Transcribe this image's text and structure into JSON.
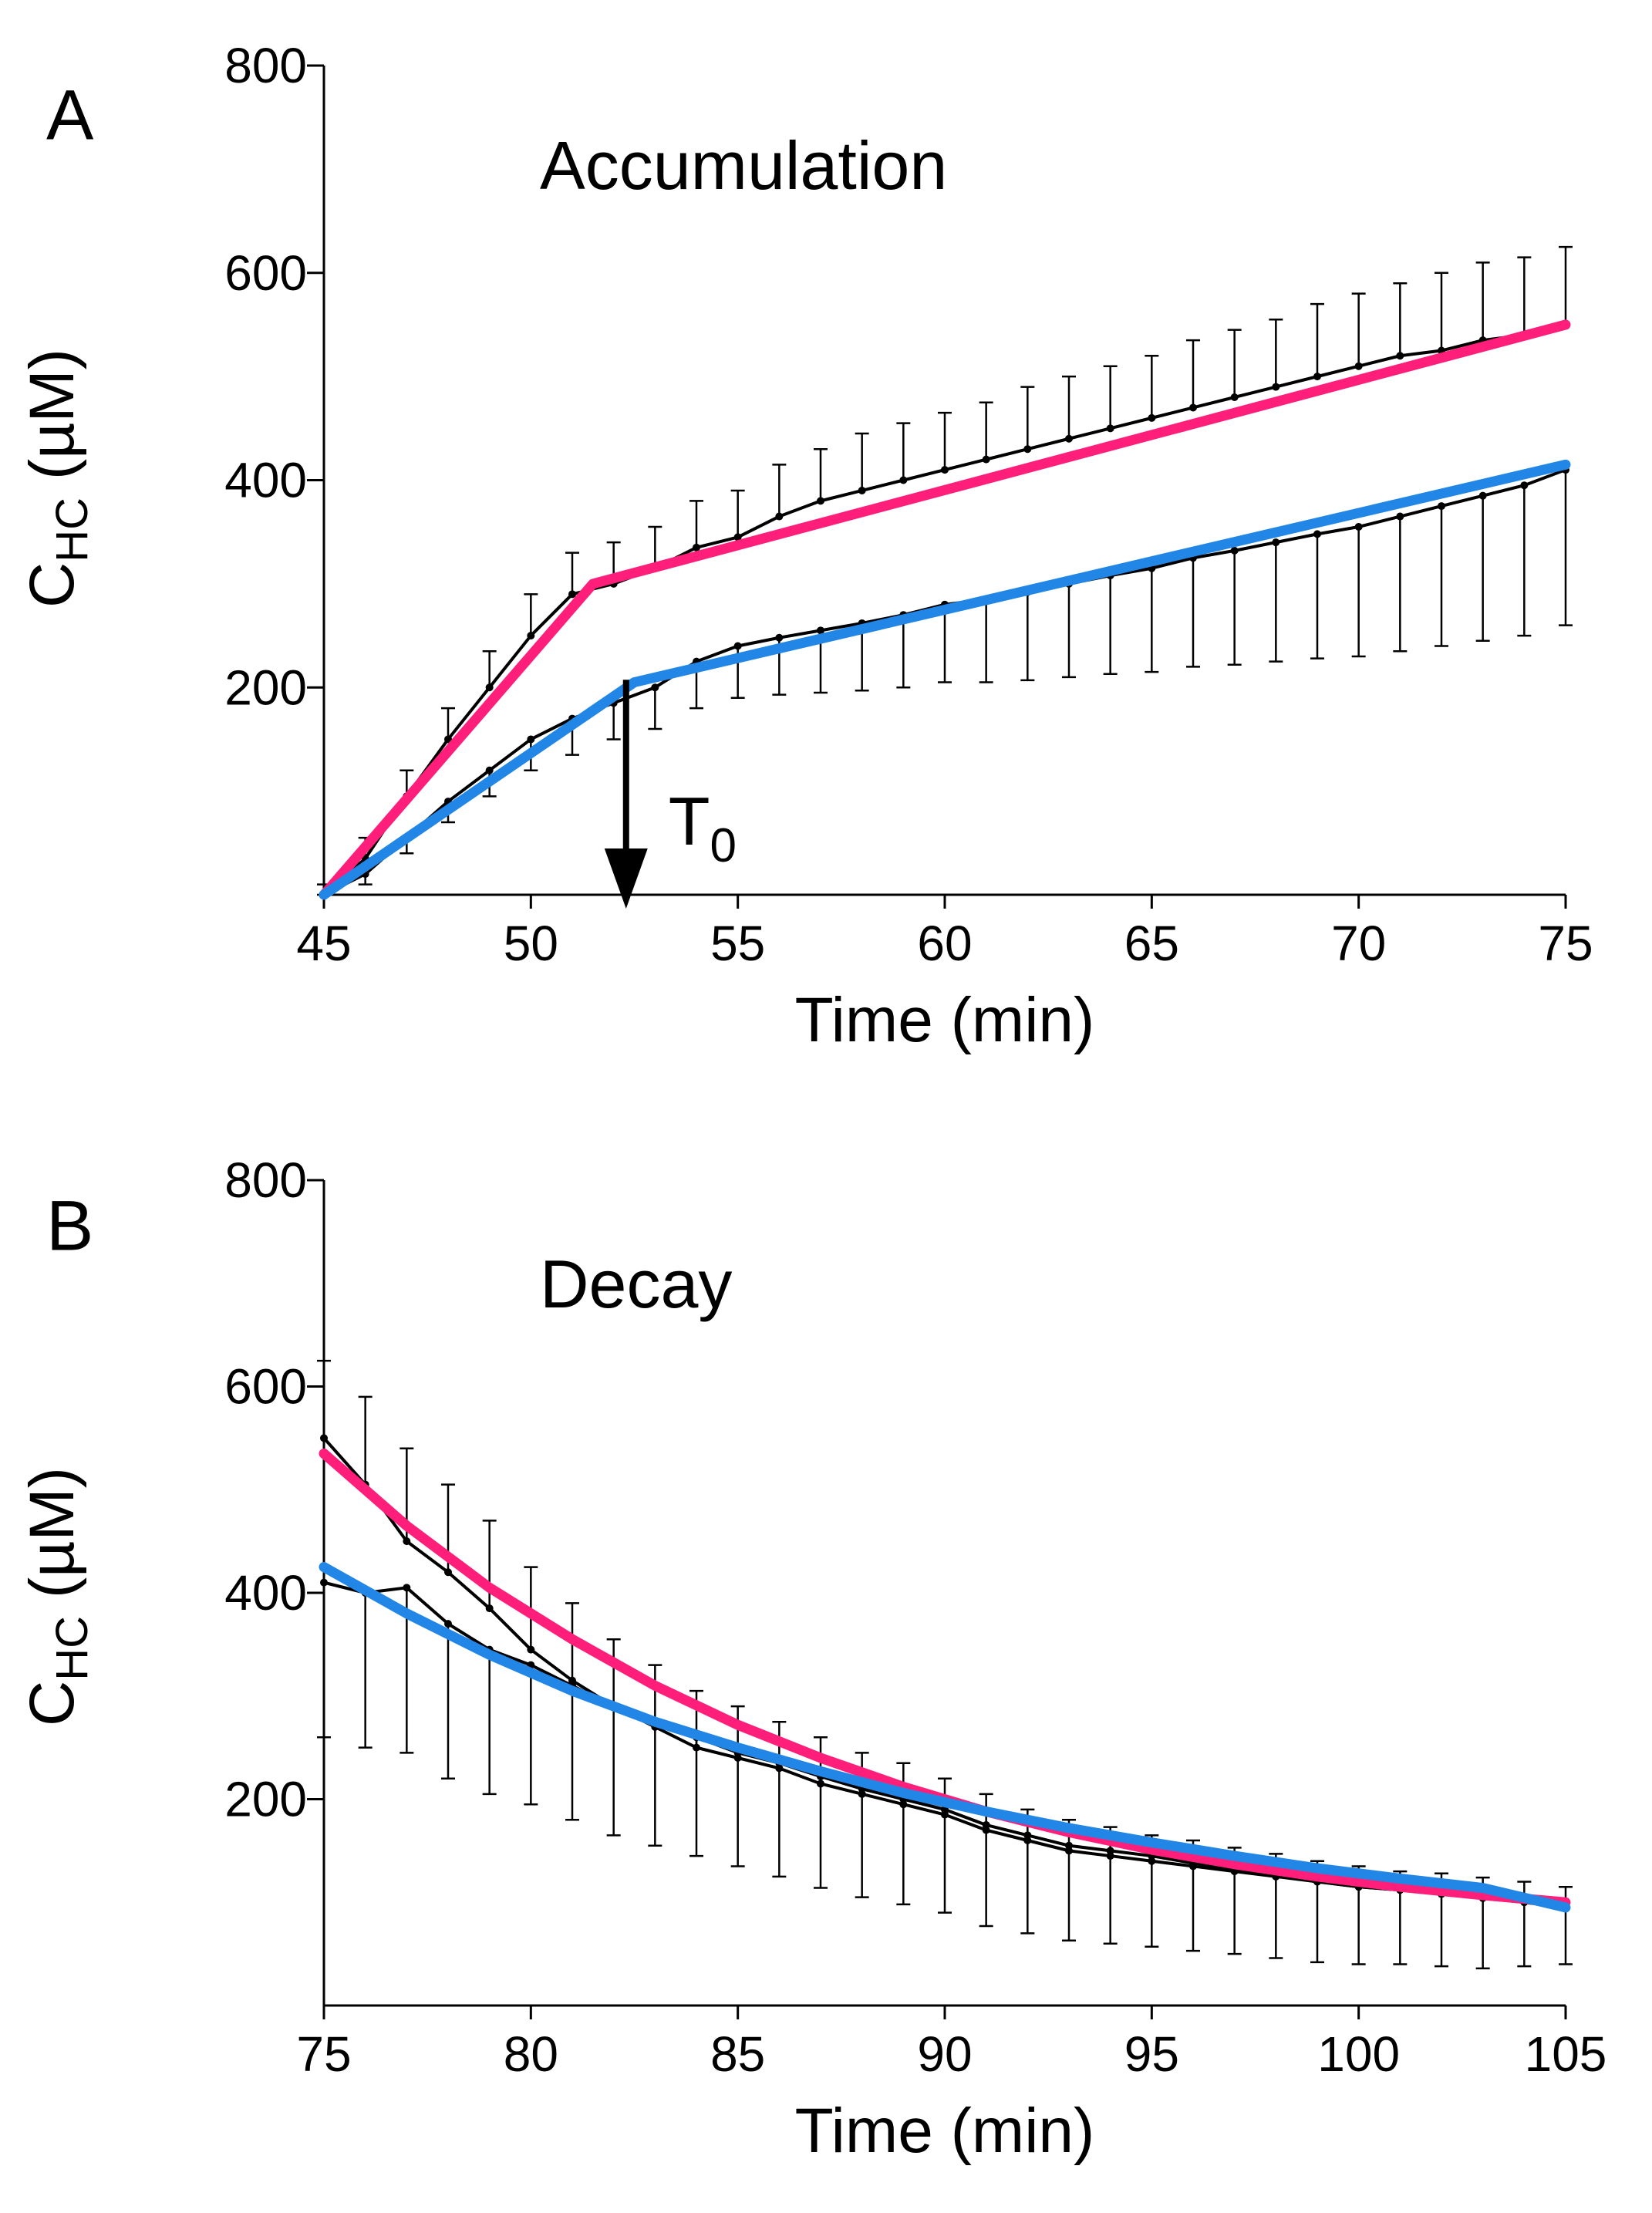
{
  "chart_data": [
    {
      "panel": "A",
      "type": "line",
      "annotation": "Accumulation",
      "marker_label": {
        "base": "T",
        "sub": "0",
        "x": 52.3
      },
      "xlabel": "Time (min)",
      "ylabel": {
        "base": "C",
        "sub": "HC",
        "rest": " (µM)"
      },
      "xlim": [
        45,
        75
      ],
      "ylim": [
        0,
        800
      ],
      "xticks": [
        45,
        50,
        55,
        60,
        65,
        70,
        75
      ],
      "yticks": [
        200,
        400,
        600,
        800
      ],
      "series": [
        {
          "color": "#000000",
          "errorbar": "up",
          "x": [
            45,
            46,
            47,
            48,
            49,
            50,
            51,
            52,
            53,
            54,
            55,
            56,
            57,
            58,
            59,
            60,
            61,
            62,
            63,
            64,
            65,
            66,
            67,
            68,
            69,
            70,
            71,
            72,
            73,
            74,
            75
          ],
          "y": [
            0,
            35,
            95,
            150,
            200,
            250,
            290,
            300,
            315,
            335,
            345,
            365,
            380,
            390,
            400,
            410,
            420,
            430,
            440,
            450,
            460,
            470,
            480,
            490,
            500,
            510,
            520,
            525,
            535,
            540,
            550
          ],
          "err": [
            10,
            20,
            25,
            30,
            35,
            40,
            40,
            40,
            40,
            45,
            45,
            50,
            50,
            55,
            55,
            55,
            55,
            60,
            60,
            60,
            60,
            65,
            65,
            65,
            70,
            70,
            70,
            75,
            75,
            75,
            75
          ]
        },
        {
          "color": "#000000",
          "errorbar": "down",
          "x": [
            45,
            46,
            47,
            48,
            49,
            50,
            51,
            52,
            53,
            54,
            55,
            56,
            57,
            58,
            59,
            60,
            61,
            62,
            63,
            64,
            65,
            66,
            67,
            68,
            69,
            70,
            71,
            72,
            73,
            74,
            75
          ],
          "y": [
            0,
            20,
            55,
            90,
            120,
            150,
            170,
            185,
            200,
            225,
            240,
            248,
            255,
            262,
            270,
            280,
            285,
            292,
            300,
            308,
            315,
            325,
            332,
            340,
            348,
            355,
            365,
            375,
            385,
            395,
            410
          ],
          "err": [
            5,
            10,
            15,
            20,
            25,
            30,
            35,
            35,
            40,
            45,
            50,
            55,
            60,
            65,
            70,
            75,
            80,
            85,
            90,
            95,
            100,
            105,
            110,
            115,
            120,
            125,
            130,
            135,
            140,
            145,
            150
          ]
        },
        {
          "color": "#ff1f7a",
          "x": [
            45,
            51.5,
            75
          ],
          "y": [
            0,
            300,
            550
          ]
        },
        {
          "color": "#2186e6",
          "x": [
            45,
            52.5,
            75
          ],
          "y": [
            0,
            205,
            415
          ]
        }
      ]
    },
    {
      "panel": "B",
      "type": "line",
      "annotation": "Decay",
      "xlabel": "Time (min)",
      "ylabel": {
        "base": "C",
        "sub": "HC",
        "rest": " (µM)"
      },
      "xlim": [
        75,
        105
      ],
      "ylim": [
        0,
        800
      ],
      "xticks": [
        75,
        80,
        85,
        90,
        95,
        100,
        105
      ],
      "yticks": [
        200,
        400,
        600,
        800
      ],
      "series": [
        {
          "color": "#000000",
          "errorbar": "up",
          "x": [
            75,
            76,
            77,
            78,
            79,
            80,
            81,
            82,
            83,
            84,
            85,
            86,
            87,
            88,
            89,
            90,
            91,
            92,
            93,
            94,
            95,
            96,
            97,
            98,
            99,
            100,
            101,
            102,
            103,
            104,
            105
          ],
          "y": [
            550,
            505,
            450,
            420,
            385,
            345,
            315,
            290,
            270,
            250,
            240,
            230,
            215,
            205,
            195,
            185,
            170,
            160,
            150,
            145,
            140,
            135,
            130,
            125,
            120,
            115,
            112,
            110,
            108,
            105,
            100
          ],
          "err": [
            75,
            85,
            90,
            85,
            85,
            80,
            75,
            65,
            60,
            55,
            50,
            45,
            45,
            40,
            40,
            35,
            35,
            30,
            30,
            28,
            25,
            25,
            23,
            22,
            20,
            20,
            18,
            18,
            16,
            15,
            15
          ]
        },
        {
          "color": "#000000",
          "errorbar": "down",
          "x": [
            75,
            76,
            77,
            78,
            79,
            80,
            81,
            82,
            83,
            84,
            85,
            86,
            87,
            88,
            89,
            90,
            91,
            92,
            93,
            94,
            95,
            96,
            97,
            98,
            99,
            100,
            101,
            102,
            103,
            104,
            105
          ],
          "y": [
            410,
            400,
            405,
            370,
            345,
            330,
            310,
            290,
            275,
            260,
            245,
            235,
            222,
            210,
            200,
            190,
            175,
            165,
            155,
            150,
            145,
            138,
            132,
            126,
            120,
            115,
            112,
            108,
            104,
            100,
            95
          ],
          "err": [
            150,
            150,
            160,
            150,
            140,
            135,
            130,
            125,
            120,
            115,
            110,
            110,
            108,
            105,
            102,
            100,
            98,
            95,
            92,
            90,
            88,
            85,
            82,
            80,
            78,
            75,
            72,
            70,
            68,
            62,
            55
          ]
        },
        {
          "color": "#ff1f7a",
          "x": [
            75,
            77,
            79,
            81,
            83,
            85,
            87,
            89,
            91,
            93,
            95,
            97,
            99,
            101,
            103,
            105
          ],
          "y": [
            535,
            465,
            405,
            355,
            310,
            272,
            240,
            212,
            188,
            168,
            151,
            137,
            125,
            115,
            107,
            100
          ]
        },
        {
          "color": "#2186e6",
          "x": [
            75,
            77,
            79,
            81,
            83,
            85,
            87,
            89,
            91,
            93,
            95,
            97,
            99,
            101,
            103,
            105
          ],
          "y": [
            425,
            380,
            340,
            305,
            275,
            250,
            227,
            206,
            188,
            172,
            158,
            145,
            133,
            123,
            114,
            95
          ]
        }
      ]
    }
  ]
}
